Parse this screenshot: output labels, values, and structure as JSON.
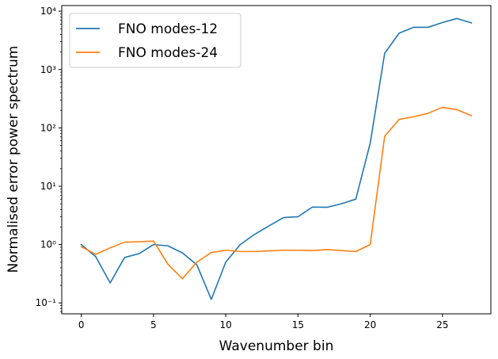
{
  "chart_data": {
    "type": "line",
    "title": "",
    "xlabel": "Wavenumber bin",
    "ylabel": "Normalised error power spectrum",
    "yscale": "log",
    "xlim": [
      -1.35,
      28.35
    ],
    "ylim": [
      0.065,
      12500
    ],
    "xticks": [
      0,
      5,
      10,
      15,
      20,
      25
    ],
    "xtick_labels": [
      "0",
      "5",
      "10",
      "15",
      "20",
      "25"
    ],
    "yticks": [
      0.1,
      1,
      10,
      100,
      1000,
      10000
    ],
    "ytick_labels": [
      "10⁻¹",
      "10⁰",
      "10¹",
      "10²",
      "10³",
      "10⁴"
    ],
    "grid": false,
    "legend_position": "upper-left",
    "x": [
      0,
      1,
      2,
      3,
      4,
      5,
      6,
      7,
      8,
      9,
      10,
      11,
      12,
      13,
      14,
      15,
      16,
      17,
      18,
      19,
      20,
      21,
      22,
      23,
      24,
      25,
      26,
      27
    ],
    "series": [
      {
        "name": "FNO modes-12",
        "color": "#1f77b4",
        "values": [
          1.0,
          0.62,
          0.22,
          0.6,
          0.7,
          1.0,
          0.95,
          0.72,
          0.45,
          0.115,
          0.5,
          1.0,
          1.5,
          2.1,
          2.9,
          3.0,
          4.4,
          4.35,
          5.0,
          6.0,
          55,
          1900,
          4200,
          5300,
          5300,
          6400,
          7500,
          6300
        ]
      },
      {
        "name": "FNO modes-24",
        "color": "#ff7f0e",
        "values": [
          0.92,
          0.68,
          0.88,
          1.1,
          1.12,
          1.15,
          0.46,
          0.26,
          0.5,
          0.73,
          0.8,
          0.76,
          0.76,
          0.78,
          0.8,
          0.8,
          0.79,
          0.82,
          0.79,
          0.76,
          1.0,
          72,
          140,
          155,
          178,
          225,
          205,
          162
        ]
      }
    ]
  }
}
